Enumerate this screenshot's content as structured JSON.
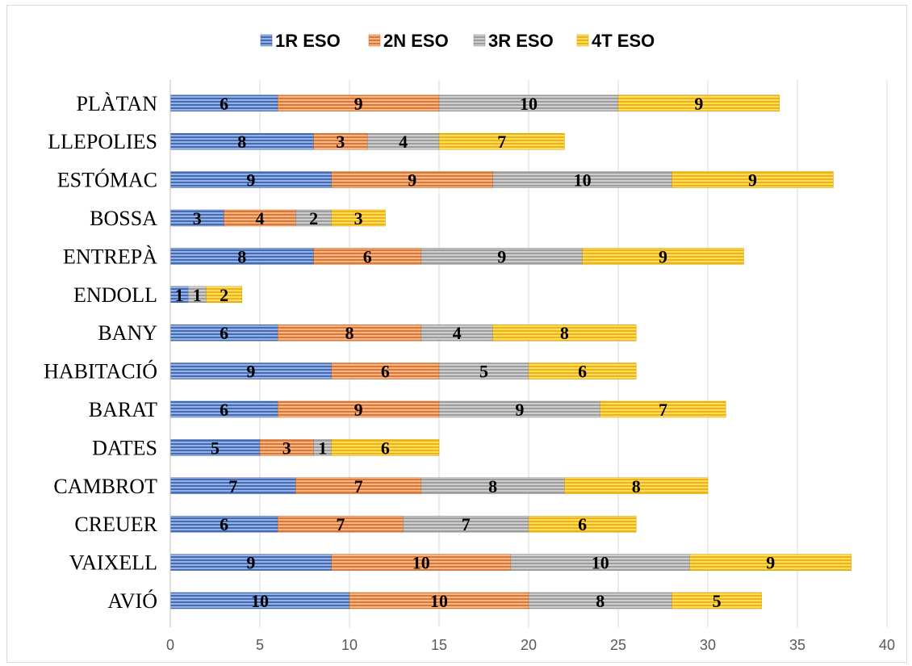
{
  "chart_data": {
    "type": "bar",
    "orientation": "horizontal",
    "stacked": true,
    "categories": [
      "AVIÓ",
      "VAIXELL",
      "CREUER",
      "CAMBROT",
      "DATES",
      "BARAT",
      "HABITACIÓ",
      "BANY",
      "ENDOLL",
      "ENTREPÀ",
      "BOSSA",
      "ESTÓMAC",
      "LLEPOLIES",
      "PLÀTAN"
    ],
    "series": [
      {
        "name": "1R ESO",
        "color": "#4472c4",
        "values": [
          10,
          9,
          6,
          7,
          5,
          6,
          9,
          6,
          1,
          8,
          3,
          9,
          8,
          6
        ]
      },
      {
        "name": "2N ESO",
        "color": "#ed7d31",
        "values": [
          10,
          10,
          7,
          7,
          3,
          9,
          6,
          8,
          0,
          6,
          4,
          9,
          3,
          9
        ]
      },
      {
        "name": "3R ESO",
        "color": "#a5a5a5",
        "values": [
          8,
          10,
          7,
          8,
          1,
          9,
          5,
          4,
          1,
          9,
          2,
          10,
          4,
          10
        ]
      },
      {
        "name": "4T ESO",
        "color": "#ffc000",
        "values": [
          5,
          9,
          6,
          8,
          6,
          7,
          6,
          8,
          2,
          9,
          3,
          9,
          7,
          9
        ]
      }
    ],
    "xlim": [
      0,
      40
    ],
    "xticks": [
      0,
      5,
      10,
      15,
      20,
      25,
      30,
      35,
      40
    ],
    "grid": true,
    "legend_position": "top",
    "data_labels": true
  }
}
